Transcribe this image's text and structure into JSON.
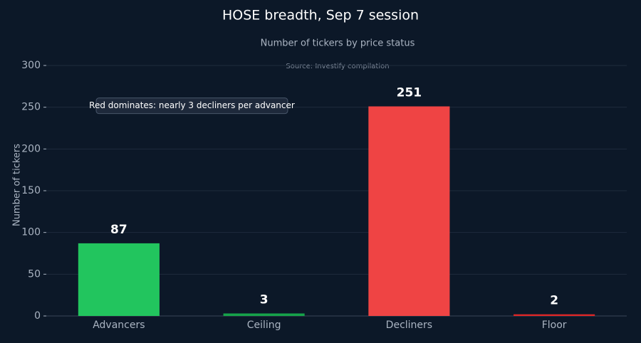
{
  "chart_data": {
    "type": "bar",
    "title": "HOSE breadth, Sep 7 session",
    "subtitle": "Number of tickers by price status",
    "source": "Source: Investify compilation",
    "annotation": "Red dominates: nearly 3 decliners per advancer",
    "y_label": "Number of tickers",
    "categories": [
      "Advancers",
      "Ceiling",
      "Decliners",
      "Floor"
    ],
    "values": [
      87,
      3,
      251,
      2
    ],
    "colors": [
      "#22c55e",
      "#16a34a",
      "#ef4444",
      "#dc2626"
    ],
    "ylim": [
      0,
      300
    ],
    "yticks": [
      0,
      50,
      100,
      150,
      200,
      250,
      300
    ],
    "grid": true
  }
}
